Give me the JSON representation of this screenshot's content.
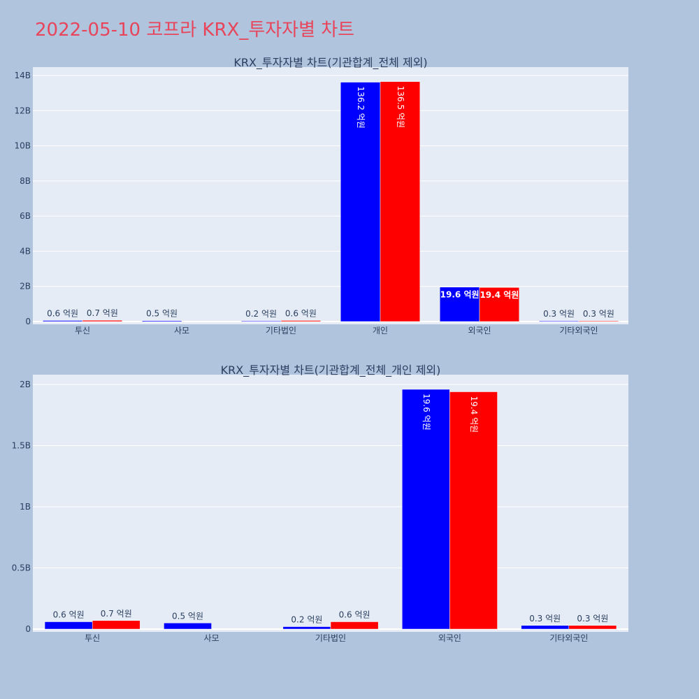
{
  "title": "2022-05-10 코프라 KRX_투자자별 차트",
  "colors": {
    "series_a": "#0000ff",
    "series_b": "#ff0000",
    "plot_bg": "#e5ecf6",
    "page_bg": "#b0c4de",
    "title": "#e8455a",
    "text": "#2a3f5f"
  },
  "chart_data": [
    {
      "type": "bar",
      "title": "KRX_투자자별 차트(기관합계_전체 제외)",
      "categories": [
        "투신",
        "사모",
        "기타법인",
        "개인",
        "외국인",
        "기타외국인"
      ],
      "series": [
        {
          "values": [
            60000000,
            50000000,
            20000000,
            13620000000,
            1960000000,
            30000000
          ],
          "labels": [
            "0.6 억원",
            "0.5 억원",
            "0.2 억원",
            "136.2 억원",
            "19.6 억원",
            "0.3 억원"
          ]
        },
        {
          "values": [
            70000000,
            null,
            60000000,
            13650000000,
            1940000000,
            30000000
          ],
          "labels": [
            "0.7 억원",
            "",
            "0.6 억원",
            "136.5 억원",
            "19.4 억원",
            "0.3 억원"
          ]
        }
      ],
      "ylim": [
        0,
        14200000000
      ],
      "yticks": [
        0,
        2000000000,
        4000000000,
        6000000000,
        8000000000,
        10000000000,
        12000000000,
        14000000000
      ],
      "ytick_labels": [
        "0",
        "2B",
        "4B",
        "6B",
        "8B",
        "10B",
        "12B",
        "14B"
      ],
      "xlabel": "",
      "ylabel": "",
      "grid": true,
      "legend": "none"
    },
    {
      "type": "bar",
      "title": "KRX_투자자별 차트(기관합계_전체_개인 제외)",
      "categories": [
        "투신",
        "사모",
        "기타법인",
        "외국인",
        "기타외국인"
      ],
      "series": [
        {
          "values": [
            60000000,
            50000000,
            20000000,
            1960000000,
            30000000
          ],
          "labels": [
            "0.6 억원",
            "0.5 억원",
            "0.2 억원",
            "19.6 억원",
            "0.3 억원"
          ]
        },
        {
          "values": [
            70000000,
            null,
            60000000,
            1940000000,
            30000000
          ],
          "labels": [
            "0.7 억원",
            "",
            "0.6 억원",
            "19.4 억원",
            "0.3 억원"
          ]
        }
      ],
      "ylim": [
        0,
        2080000000
      ],
      "yticks": [
        0,
        500000000,
        1000000000,
        1500000000,
        2000000000
      ],
      "ytick_labels": [
        "0",
        "0.5B",
        "1B",
        "1.5B",
        "2B"
      ],
      "xlabel": "",
      "ylabel": "",
      "grid": true,
      "legend": "none"
    }
  ]
}
